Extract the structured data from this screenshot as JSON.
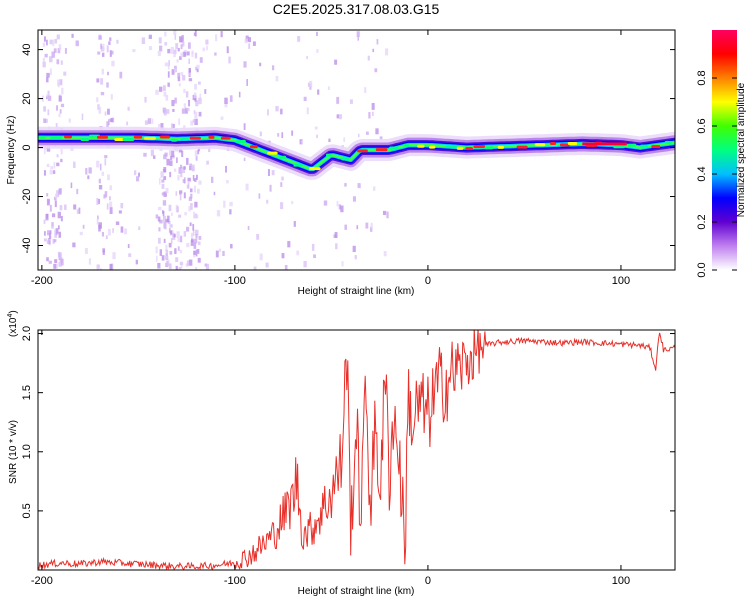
{
  "title": "C2E5.2025.317.08.03.G15",
  "chart_data": [
    {
      "type": "heatmap",
      "xlabel": "Height of straight line (km)",
      "ylabel": "Frequency (Hz)",
      "xlim": [
        -202,
        128
      ],
      "ylim": [
        -50,
        48
      ],
      "xticks": [
        "-200",
        "-100",
        "0",
        "100"
      ],
      "xtick_values": [
        -200,
        -100,
        0,
        100
      ],
      "yticks": [
        "-40",
        "-20",
        "0",
        "20",
        "40"
      ],
      "ytick_values": [
        -40,
        -20,
        0,
        20,
        40
      ],
      "ridge": {
        "description_points_x": [
          -202,
          -190,
          -170,
          -150,
          -130,
          -110,
          -100,
          -90,
          -80,
          -70,
          -60,
          -50,
          -45,
          -40,
          -35,
          -30,
          -20,
          -10,
          0,
          20,
          40,
          60,
          80,
          100,
          110,
          128
        ],
        "frequency_hz": [
          4,
          4,
          4,
          4,
          3.5,
          4,
          3,
          0,
          -3,
          -6,
          -9,
          -3,
          -4,
          -5,
          -1,
          -1,
          -1,
          1,
          1,
          0,
          0.5,
          1,
          1.5,
          1,
          0,
          2
        ]
      },
      "colorbar": {
        "label": "Normalized spectral amplitude",
        "ticks": [
          "0.0",
          "0.2",
          "0.4",
          "0.6",
          "0.8"
        ],
        "tick_values": [
          0,
          0.2,
          0.4,
          0.6,
          0.8
        ],
        "range": [
          0,
          1
        ],
        "colormap": [
          "#ffffff",
          "#c080f0",
          "#6000d0",
          "#0000ff",
          "#00c0ff",
          "#00ff80",
          "#40ff00",
          "#ffff00",
          "#ff8000",
          "#ff0000",
          "#ff0060"
        ]
      }
    },
    {
      "type": "line",
      "xlabel": "Height of straight line (km)",
      "ylabel": "SNR (10 * v/v)",
      "scale_label": "(x10",
      "scale_exp": "4",
      "xlim": [
        -202,
        128
      ],
      "ylim": [
        0,
        2.03
      ],
      "xticks": [
        "-200",
        "-100",
        "0",
        "100"
      ],
      "xtick_values": [
        -200,
        -100,
        0,
        100
      ],
      "yticks": [
        "0.5",
        "1.0",
        "1.5",
        "2.0"
      ],
      "ytick_values": [
        0.5,
        1.0,
        1.5,
        2.0
      ],
      "series": [
        {
          "color": "#e8302a",
          "x": [
            -202,
            -190,
            -180,
            -170,
            -160,
            -150,
            -140,
            -130,
            -120,
            -110,
            -100,
            -95,
            -90,
            -85,
            -80,
            -75,
            -70,
            -68,
            -65,
            -60,
            -55,
            -50,
            -45,
            -42,
            -40,
            -37,
            -35,
            -32,
            -30,
            -27,
            -25,
            -22,
            -20,
            -18,
            -15,
            -12,
            -10,
            -8,
            -5,
            0,
            5,
            10,
            15,
            20,
            25,
            30,
            35,
            40,
            50,
            60,
            70,
            80,
            90,
            100,
            110,
            115,
            118,
            120,
            122,
            128
          ],
          "y": [
            0.04,
            0.06,
            0.05,
            0.07,
            0.06,
            0.05,
            0.04,
            0.03,
            0.03,
            0.04,
            0.06,
            0.1,
            0.15,
            0.22,
            0.3,
            0.45,
            0.6,
            0.78,
            0.3,
            0.35,
            0.5,
            0.65,
            0.9,
            1.85,
            0.4,
            1.2,
            0.5,
            1.5,
            0.6,
            1.2,
            0.7,
            1.6,
            0.8,
            1.3,
            1.0,
            0.2,
            1.5,
            1.2,
            1.4,
            1.3,
            1.55,
            1.6,
            1.7,
            1.75,
            1.85,
            1.9,
            1.92,
            1.93,
            1.94,
            1.93,
            1.92,
            1.93,
            1.92,
            1.91,
            1.9,
            1.88,
            1.7,
            2.03,
            1.86,
            1.88
          ]
        }
      ]
    }
  ]
}
